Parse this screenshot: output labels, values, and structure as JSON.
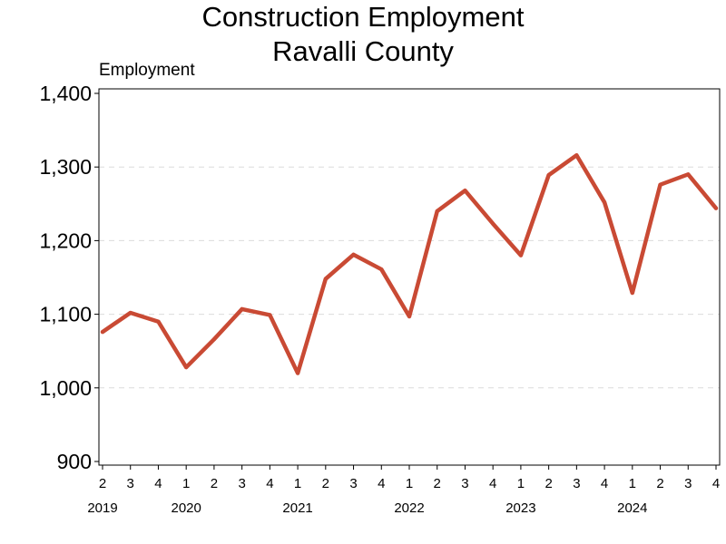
{
  "chart_data": {
    "type": "line",
    "title": "Construction Employment",
    "subtitle": "Ravalli County",
    "ylabel": "Employment",
    "xlabel": "",
    "ylim": [
      900,
      1400
    ],
    "yticks": [
      900,
      1000,
      1100,
      1200,
      1300,
      1400
    ],
    "ytick_labels": [
      "900",
      "1,000",
      "1,100",
      "1,200",
      "1,300",
      "1,400"
    ],
    "grid": "horizontal-dashed",
    "x": [
      {
        "year": "2019",
        "quarter": "2"
      },
      {
        "year": "2019",
        "quarter": "3"
      },
      {
        "year": "2019",
        "quarter": "4"
      },
      {
        "year": "2020",
        "quarter": "1"
      },
      {
        "year": "2020",
        "quarter": "2"
      },
      {
        "year": "2020",
        "quarter": "3"
      },
      {
        "year": "2020",
        "quarter": "4"
      },
      {
        "year": "2021",
        "quarter": "1"
      },
      {
        "year": "2021",
        "quarter": "2"
      },
      {
        "year": "2021",
        "quarter": "3"
      },
      {
        "year": "2021",
        "quarter": "4"
      },
      {
        "year": "2022",
        "quarter": "1"
      },
      {
        "year": "2022",
        "quarter": "2"
      },
      {
        "year": "2022",
        "quarter": "3"
      },
      {
        "year": "2022",
        "quarter": "4"
      },
      {
        "year": "2023",
        "quarter": "1"
      },
      {
        "year": "2023",
        "quarter": "2"
      },
      {
        "year": "2023",
        "quarter": "3"
      },
      {
        "year": "2023",
        "quarter": "4"
      },
      {
        "year": "2024",
        "quarter": "1"
      },
      {
        "year": "2024",
        "quarter": "2"
      },
      {
        "year": "2024",
        "quarter": "3"
      },
      {
        "year": "2024",
        "quarter": "4"
      }
    ],
    "year_labels": [
      "2019",
      "2020",
      "2021",
      "2022",
      "2023",
      "2024"
    ],
    "series": [
      {
        "values": [
          1076,
          1102,
          1090,
          1028,
          1066,
          1107,
          1099,
          1020,
          1148,
          1181,
          1161,
          1097,
          1240,
          1268,
          1223,
          1180,
          1289,
          1316,
          1252,
          1129,
          1276,
          1290,
          1244
        ],
        "color": "#c94a34"
      }
    ]
  }
}
